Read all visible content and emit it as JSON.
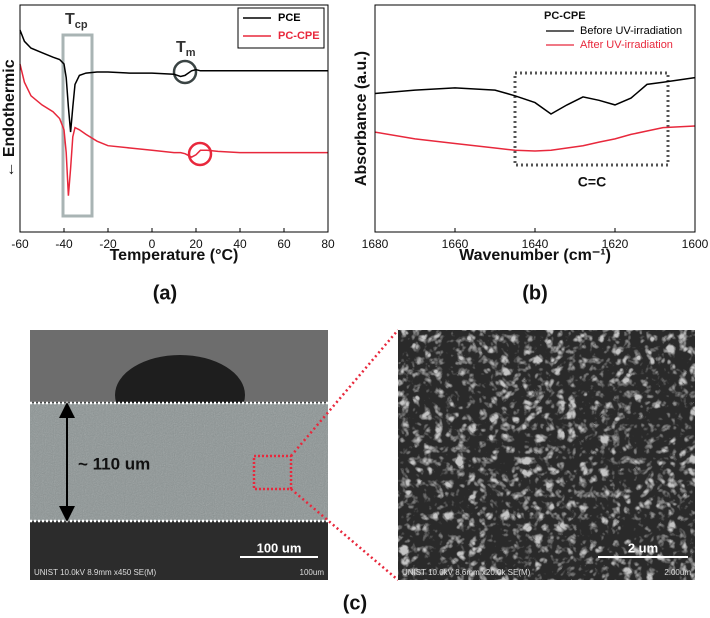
{
  "chart_data": [
    {
      "type": "line",
      "xlabel": "Temperature (°C)",
      "ylabel": "← Endothermic",
      "x": [
        -60,
        -58,
        -55,
        -50,
        -45,
        -42,
        -40,
        -39,
        -38,
        -37,
        -36,
        -35,
        -33,
        -30,
        -25,
        -20,
        -10,
        0,
        10,
        13,
        15,
        18,
        20,
        22,
        25,
        30,
        40,
        60,
        80
      ],
      "series": [
        {
          "name": "PCE",
          "color": "#000000",
          "values": [
            89,
            84,
            81,
            79,
            77,
            76,
            74,
            68,
            55,
            44,
            55,
            65,
            69,
            70,
            70.5,
            70.5,
            70,
            70,
            69.5,
            68.5,
            69,
            71,
            71.5,
            71,
            71,
            71,
            71,
            71,
            71
          ]
        },
        {
          "name": "PC-CPE",
          "color": "#e8283c",
          "values": [
            74,
            66,
            60,
            56,
            53,
            50,
            45,
            35,
            16,
            28,
            42,
            46,
            45,
            43,
            40,
            38,
            37,
            36,
            35,
            35,
            34.5,
            33,
            34,
            36,
            36,
            35.5,
            35,
            35,
            35
          ]
        }
      ],
      "xlim": [
        -60,
        80
      ],
      "xticks": [
        -60,
        -40,
        -20,
        0,
        20,
        40,
        60,
        80
      ],
      "ylim": [
        0,
        100
      ],
      "annotations": [
        {
          "base": "T",
          "sub": "cp"
        },
        {
          "base": "T",
          "sub": "m"
        }
      ],
      "panel_label": "(a)"
    },
    {
      "type": "line",
      "xlabel": "Wavenumber (cm⁻¹)",
      "ylabel": "Absorbance (a.u.)",
      "x": [
        1680,
        1670,
        1660,
        1650,
        1645,
        1640,
        1636,
        1632,
        1628,
        1624,
        1620,
        1616,
        1612,
        1608,
        1600
      ],
      "legend_title": "PC-CPE",
      "series": [
        {
          "name": "Before UV-irradiation",
          "color": "#000000",
          "values": [
            61,
            62.5,
            63.5,
            62.5,
            60,
            57,
            52,
            56,
            59.5,
            58,
            56,
            59,
            65,
            66,
            68
          ]
        },
        {
          "name": "After UV-irradiation",
          "color": "#e8283c",
          "values": [
            44,
            41,
            39,
            37,
            36,
            35.7,
            36,
            37,
            38,
            39.6,
            41,
            43,
            44.5,
            46,
            46.7
          ]
        }
      ],
      "xlim": [
        1680,
        1600
      ],
      "xticks": [
        1680,
        1660,
        1640,
        1620,
        1600
      ],
      "ylim": [
        0,
        100
      ],
      "annotations": [
        "C=C"
      ],
      "panel_label": "(b)"
    }
  ],
  "panel_c": {
    "thickness": "~ 110 um",
    "left": {
      "scale": "100 um",
      "info": "UNIST 10.0kV 8.9mm x450 SE(M)",
      "info_scale": "100um"
    },
    "right": {
      "scale": "2 um",
      "info": "UNIST 10.0kV 8.6mm x20.0k SE(M)",
      "info_scale": "2.00um"
    },
    "panel_label": "(c)"
  }
}
